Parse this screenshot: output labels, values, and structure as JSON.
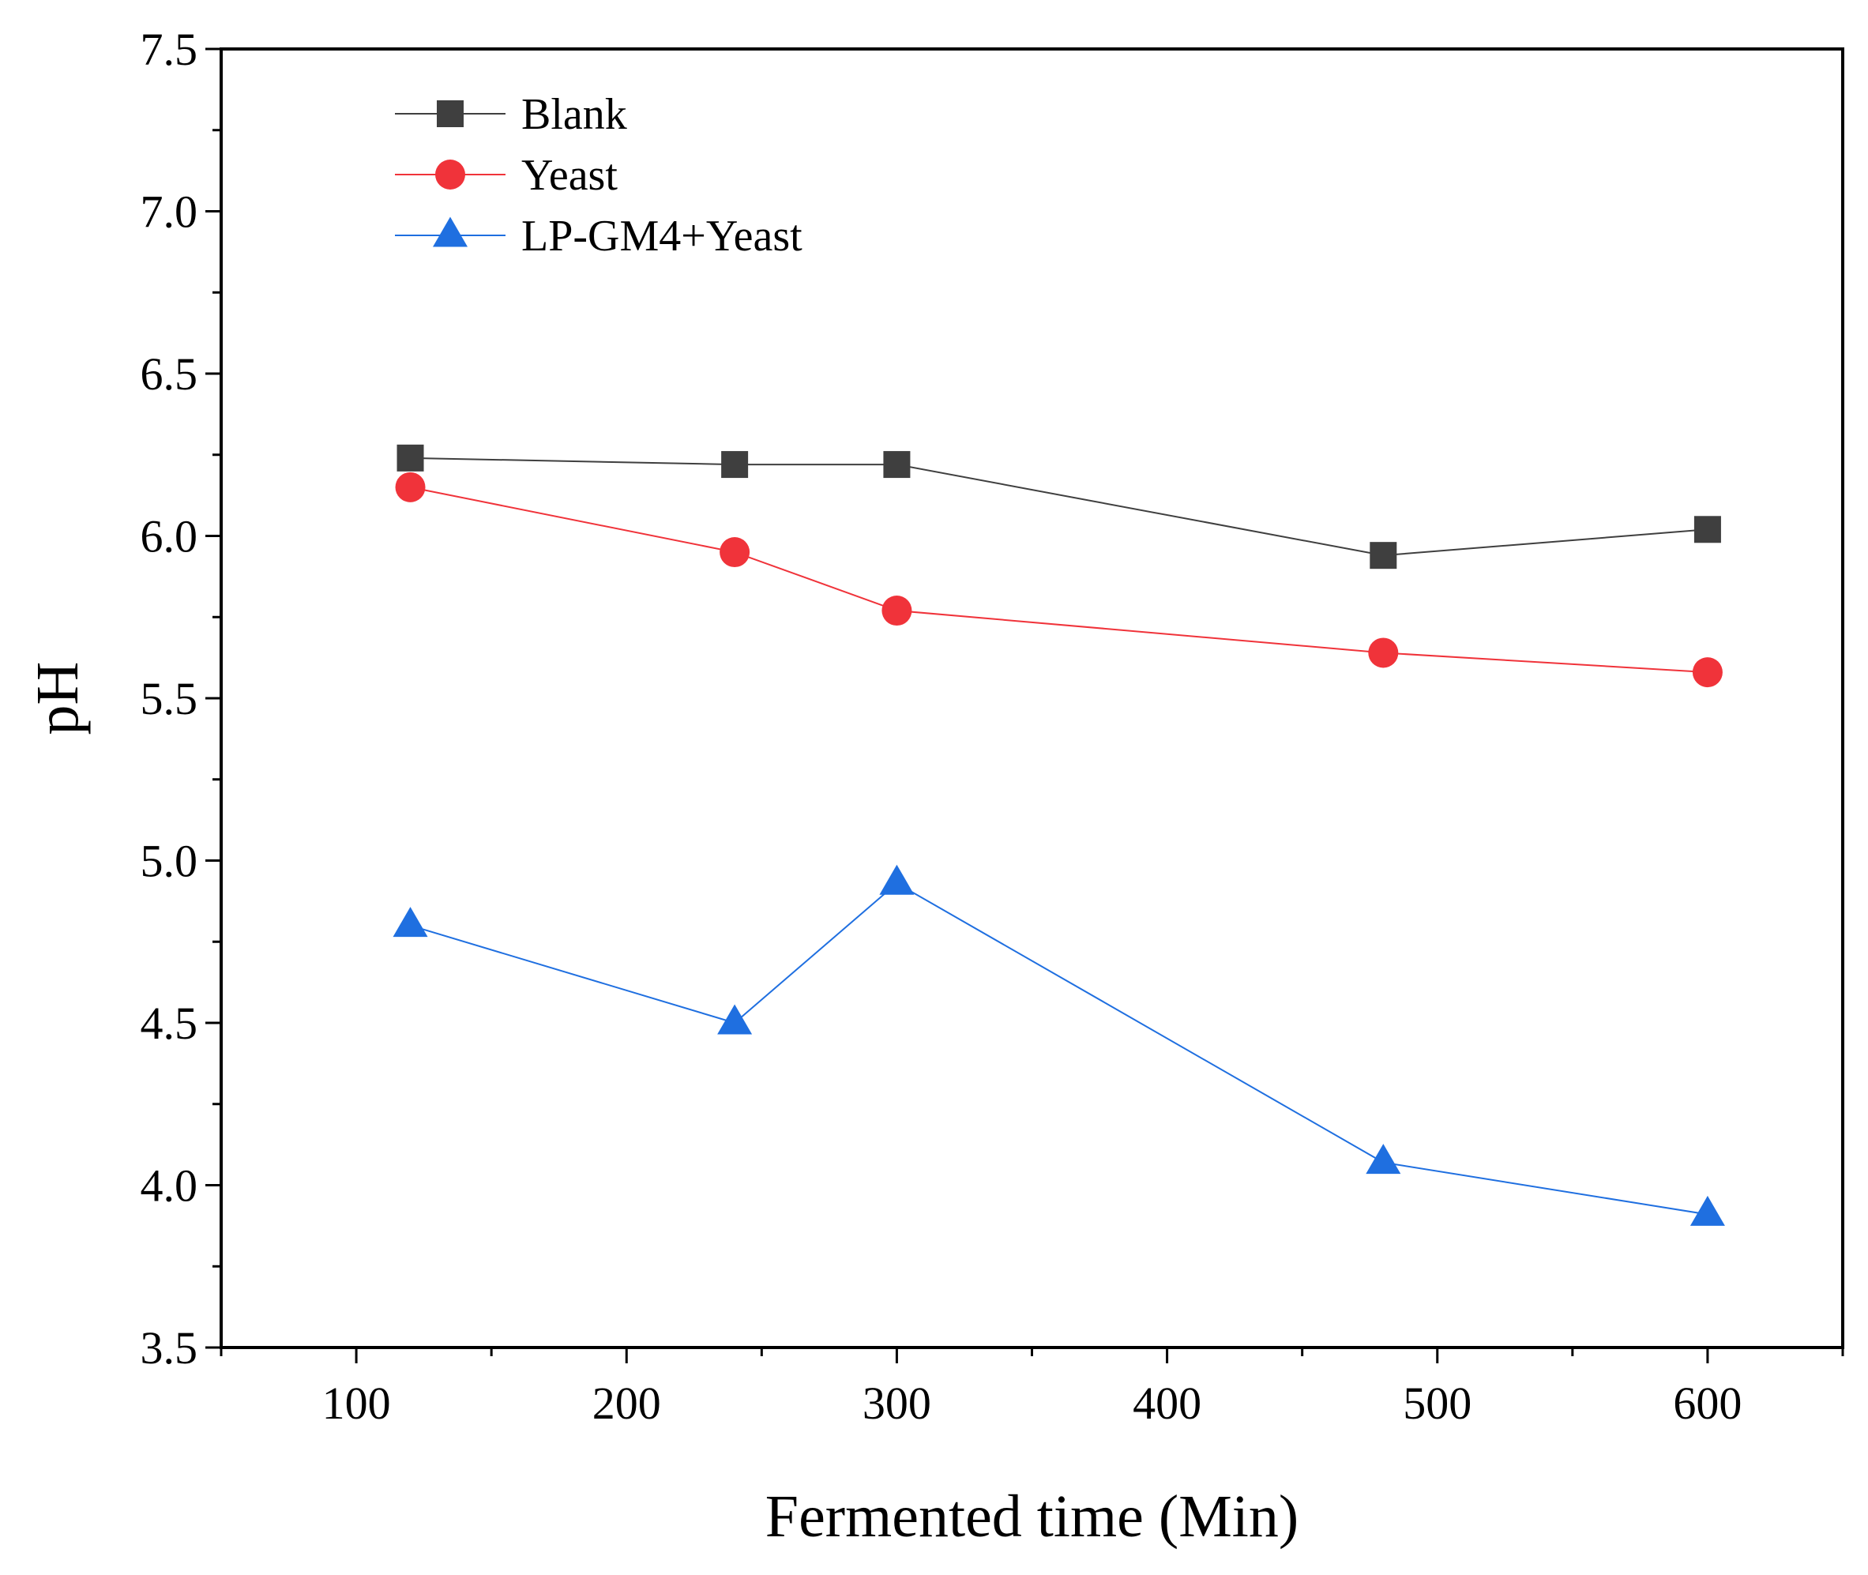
{
  "chart_data": {
    "type": "line",
    "title": "",
    "xlabel": "Fermented time (Min)",
    "ylabel": "pH",
    "xlim": [
      50,
      650
    ],
    "ylim": [
      3.5,
      7.5
    ],
    "x_ticks": [
      100,
      200,
      300,
      400,
      500,
      600
    ],
    "x_tick_labels": [
      "100",
      "200",
      "300",
      "400",
      "500",
      "600"
    ],
    "x_minor_step": 50,
    "y_ticks": [
      3.5,
      4.0,
      4.5,
      5.0,
      5.5,
      6.0,
      6.5,
      7.0,
      7.5
    ],
    "y_tick_labels": [
      "3.5",
      "4.0",
      "4.5",
      "5.0",
      "5.5",
      "6.0",
      "6.5",
      "7.0",
      "7.5"
    ],
    "y_minor_step": 0.25,
    "grid": false,
    "legend_position": "top-left",
    "x": [
      120,
      240,
      300,
      480,
      600
    ],
    "series": [
      {
        "name": "Blank",
        "marker": "square",
        "color": "#3f3f3f",
        "values": [
          6.24,
          6.22,
          6.22,
          5.94,
          6.02
        ]
      },
      {
        "name": "Yeast",
        "marker": "circle",
        "color": "#f0333a",
        "values": [
          6.15,
          5.95,
          5.77,
          5.64,
          5.58
        ]
      },
      {
        "name": "LP-GM4+Yeast",
        "marker": "triangle",
        "color": "#1f6fe0",
        "values": [
          4.8,
          4.5,
          4.93,
          4.07,
          3.91
        ]
      }
    ]
  }
}
